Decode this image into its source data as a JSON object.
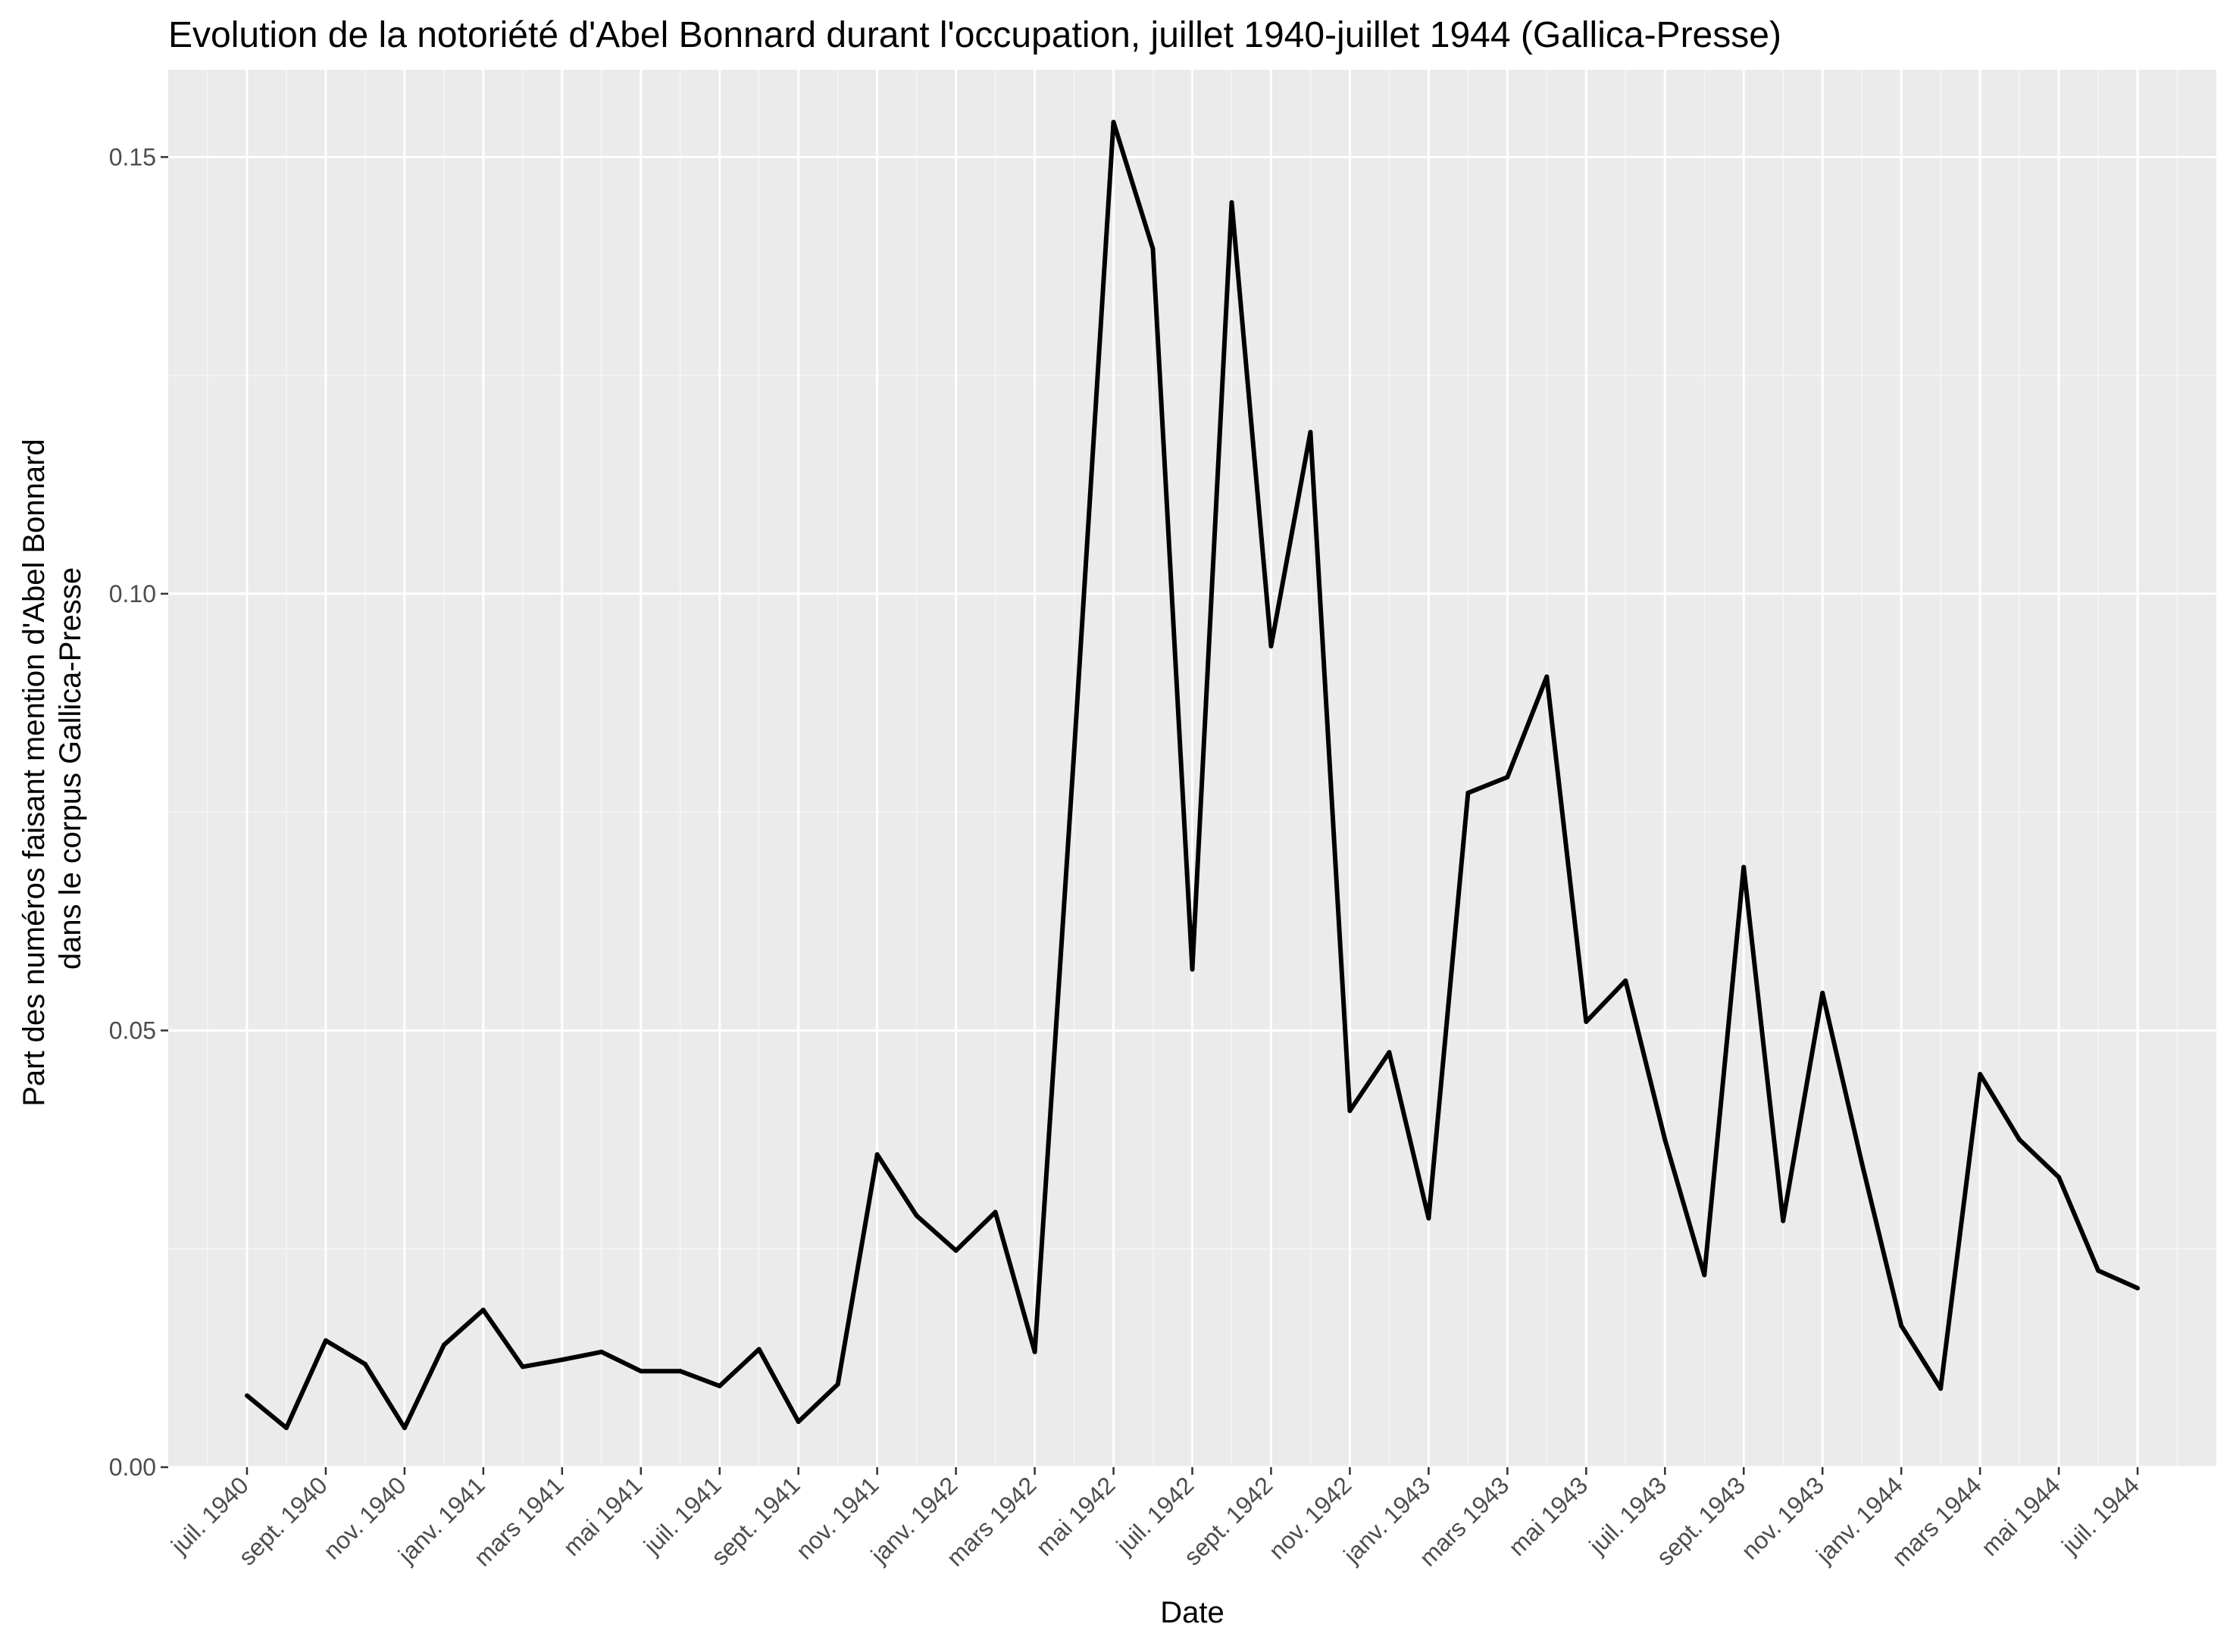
{
  "chart_data": {
    "type": "line",
    "title": "Evolution de la notoriété d'Abel Bonnard durant l'occupation, juillet 1940-juillet 1944 (Gallica-Presse)",
    "xlabel": "Date",
    "ylabel": [
      "Part des numéros faisant mention d'Abel Bonnard",
      "dans le corpus Gallica-Presse"
    ],
    "xlim": [
      "1940-05",
      "1944-09"
    ],
    "ylim": [
      0,
      0.16
    ],
    "yticks": [
      0,
      0.05,
      0.1,
      0.15
    ],
    "ytick_labels": [
      "0.00",
      "0.05",
      "0.10",
      "0.15"
    ],
    "xticks": [
      "1940-07",
      "1940-09",
      "1940-11",
      "1941-01",
      "1941-03",
      "1941-05",
      "1941-07",
      "1941-09",
      "1941-11",
      "1942-01",
      "1942-03",
      "1942-05",
      "1942-07",
      "1942-09",
      "1942-11",
      "1943-01",
      "1943-03",
      "1943-05",
      "1943-07",
      "1943-09",
      "1943-11",
      "1944-01",
      "1944-03",
      "1944-05",
      "1944-07"
    ],
    "xtick_labels": [
      "juil. 1940",
      "sept. 1940",
      "nov. 1940",
      "janv. 1941",
      "mars 1941",
      "mai 1941",
      "juil. 1941",
      "sept. 1941",
      "nov. 1941",
      "janv. 1942",
      "mars 1942",
      "mai 1942",
      "juil. 1942",
      "sept. 1942",
      "nov. 1942",
      "janv. 1943",
      "mars 1943",
      "mai 1943",
      "juil. 1943",
      "sept. 1943",
      "nov. 1943",
      "janv. 1944",
      "mars 1944",
      "mai 1944",
      "juil. 1944"
    ],
    "grid": true,
    "series": [
      {
        "color": "#000000",
        "x": [
          "1940-07",
          "1940-08",
          "1940-09",
          "1940-10",
          "1940-11",
          "1940-12",
          "1941-01",
          "1941-02",
          "1941-03",
          "1941-04",
          "1941-05",
          "1941-06",
          "1941-07",
          "1941-08",
          "1941-09",
          "1941-10",
          "1941-11",
          "1941-12",
          "1942-01",
          "1942-02",
          "1942-03",
          "1942-04",
          "1942-05",
          "1942-06",
          "1942-07",
          "1942-08",
          "1942-09",
          "1942-10",
          "1942-11",
          "1942-12",
          "1943-01",
          "1943-02",
          "1943-03",
          "1943-04",
          "1943-05",
          "1943-06",
          "1943-07",
          "1943-08",
          "1943-09",
          "1943-10",
          "1943-11",
          "1943-12",
          "1944-01",
          "1944-02",
          "1944-03",
          "1944-04",
          "1944-05",
          "1944-06",
          "1944-07"
        ],
        "y": [
          0.0082,
          0.0045,
          0.0145,
          0.0118,
          0.0045,
          0.014,
          0.018,
          0.0115,
          0.0123,
          0.0132,
          0.011,
          0.011,
          0.0093,
          0.0135,
          0.0052,
          0.0095,
          0.0358,
          0.0288,
          0.0248,
          0.0292,
          0.0132,
          0.082,
          0.154,
          0.1395,
          0.057,
          0.1448,
          0.094,
          0.1185,
          0.0408,
          0.0475,
          0.0285,
          0.0772,
          0.079,
          0.0905,
          0.051,
          0.0557,
          0.0375,
          0.022,
          0.0687,
          0.0282,
          0.0543,
          0.0348,
          0.0162,
          0.009,
          0.045,
          0.0375,
          0.0332,
          0.0225,
          0.0205
        ]
      }
    ]
  }
}
